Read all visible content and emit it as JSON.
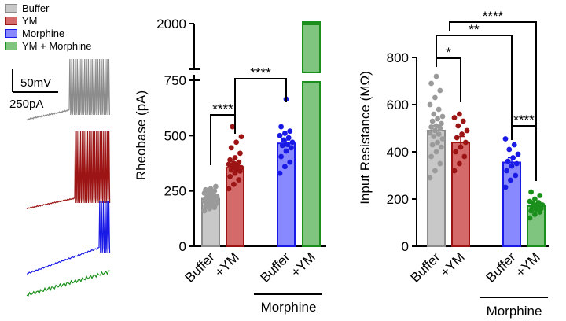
{
  "legend": [
    {
      "label": "Buffer",
      "fill": "#c8c8c8",
      "stroke": "#8c8c8c"
    },
    {
      "label": "YM",
      "fill": "#d46a6a",
      "stroke": "#9c1414"
    },
    {
      "label": "Morphine",
      "fill": "#8888ff",
      "stroke": "#1a1ae6"
    },
    {
      "label": "YM + Morphine",
      "fill": "#7fc47f",
      "stroke": "#1b8f1b"
    }
  ],
  "traces": {
    "voltage_scale": "50mV",
    "current_scale": "250pA"
  },
  "colors": {
    "buffer": "#8c8c8c",
    "ym": "#9c1414",
    "morphine": "#1a1ae6",
    "ym_morphine": "#1b8f1b"
  },
  "chart_data": [
    {
      "type": "bar",
      "title": "",
      "ylabel": "Rheobase (pA)",
      "y_ticks": [
        "0",
        "250",
        "500",
        "750",
        "2000"
      ],
      "ylim": [
        0,
        2000
      ],
      "broken_axis": [
        800,
        1950
      ],
      "categories": [
        "Buffer",
        "+YM",
        "Buffer",
        "+YM"
      ],
      "group_label": "Morphine",
      "values": [
        215,
        355,
        465,
        2000
      ],
      "errors": [
        8,
        18,
        15,
        0
      ],
      "significance": [
        {
          "from": 0,
          "to": 1,
          "label": "****"
        },
        {
          "from": 1,
          "to": 2,
          "label": "****"
        }
      ],
      "points": [
        [
          160,
          170,
          175,
          180,
          185,
          190,
          190,
          195,
          200,
          200,
          205,
          205,
          210,
          210,
          215,
          215,
          220,
          220,
          225,
          225,
          230,
          235,
          240,
          245,
          250,
          255,
          260,
          270
        ],
        [
          260,
          280,
          300,
          315,
          330,
          340,
          345,
          350,
          355,
          360,
          365,
          370,
          375,
          380,
          390,
          400,
          420,
          445,
          470,
          495,
          540
        ],
        [
          330,
          360,
          380,
          405,
          430,
          445,
          455,
          460,
          470,
          480,
          490,
          500,
          510,
          520,
          540,
          665
        ]
      ]
    },
    {
      "type": "bar",
      "title": "",
      "ylabel": "Input Resistance (MΩ)",
      "y_ticks": [
        "0",
        "200",
        "400",
        "600",
        "800"
      ],
      "ylim": [
        0,
        800
      ],
      "categories": [
        "Buffer",
        "+YM",
        "Buffer",
        "+YM"
      ],
      "group_label": "Morphine",
      "values": [
        490,
        440,
        355,
        170
      ],
      "errors": [
        22,
        25,
        20,
        10
      ],
      "significance": [
        {
          "from": 0,
          "to": 1,
          "label": "*"
        },
        {
          "from": 0,
          "to": 2,
          "label": "**"
        },
        {
          "from": 0,
          "to": 3,
          "label": "****"
        },
        {
          "from": 2,
          "to": 3,
          "label": "****"
        }
      ],
      "points": [
        [
          290,
          320,
          350,
          380,
          400,
          420,
          430,
          440,
          455,
          465,
          475,
          480,
          490,
          500,
          505,
          510,
          520,
          530,
          540,
          550,
          560,
          580,
          600,
          630,
          660,
          690,
          720
        ],
        [
          320,
          350,
          380,
          400,
          420,
          440,
          460,
          475,
          490,
          510,
          530,
          545,
          560
        ],
        [
          250,
          280,
          300,
          320,
          340,
          350,
          360,
          375,
          390,
          410,
          430,
          455
        ],
        [
          120,
          135,
          145,
          150,
          155,
          160,
          165,
          170,
          175,
          180,
          185,
          190,
          200,
          215,
          230
        ]
      ]
    }
  ]
}
